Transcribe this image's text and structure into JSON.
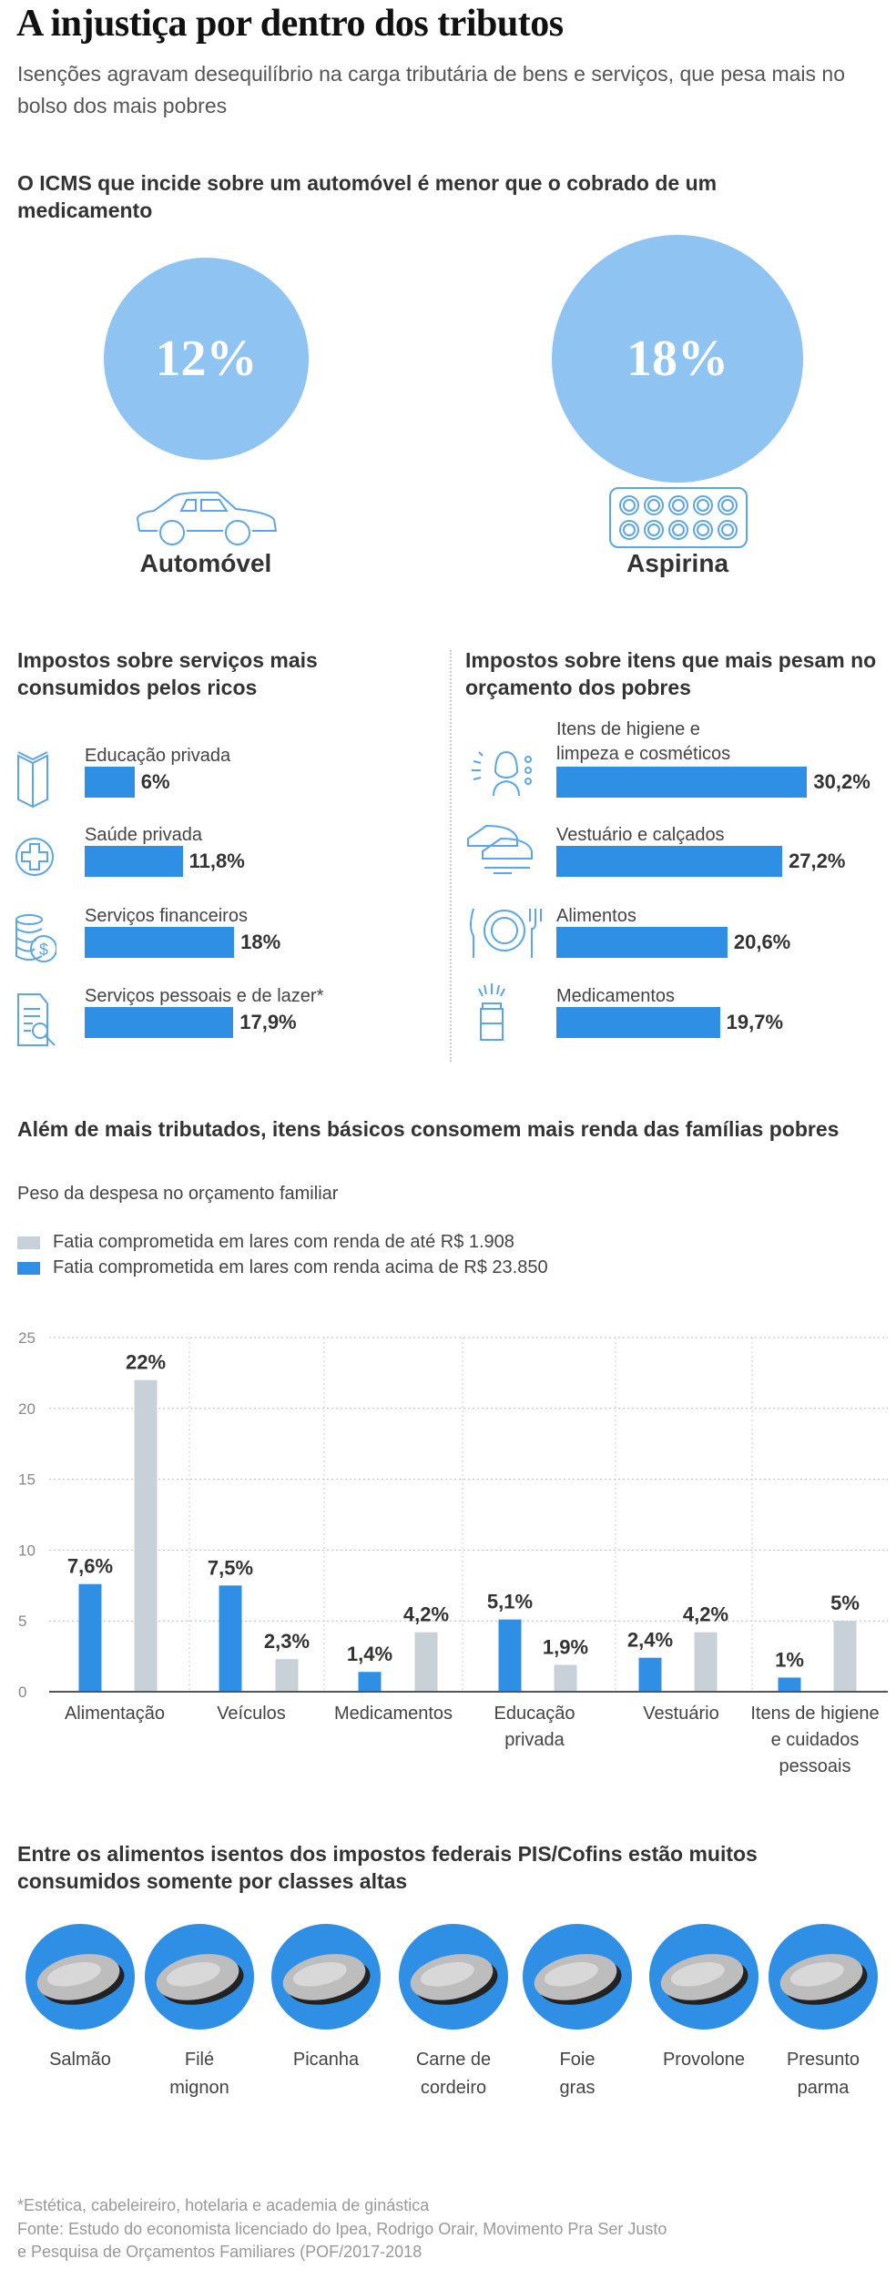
{
  "header": {
    "title": "A injustiça por dentro dos tributos",
    "subtitle": "Isenções agravam desequilíbrio na carga tributária de bens e serviços, que pesa mais no bolso dos mais pobres"
  },
  "icms": {
    "heading": "O ICMS que incide sobre um automóvel é menor que o cobrado de um medicamento",
    "items": [
      {
        "value": "12%",
        "label": "Automóvel",
        "icon": "car-icon"
      },
      {
        "value": "18%",
        "label": "Aspirina",
        "icon": "pill-blister-icon"
      }
    ],
    "circle_color": "#8ec3f2"
  },
  "rich": {
    "heading": "Impostos sobre serviços mais consumidos pelos ricos",
    "items": [
      {
        "label": "Educação privada",
        "value": 6,
        "value_label": "6%",
        "icon": "book-icon"
      },
      {
        "label": "Saúde privada",
        "value": 11.8,
        "value_label": "11,8%",
        "icon": "medical-cross-icon"
      },
      {
        "label": "Serviços financeiros",
        "value": 18,
        "value_label": "18%",
        "icon": "coins-dollar-icon"
      },
      {
        "label": "Serviços pessoais e de lazer*",
        "value": 17.9,
        "value_label": "17,9%",
        "icon": "document-search-icon"
      }
    ]
  },
  "poor": {
    "heading": "Impostos sobre itens que mais pesam no orçamento dos pobres",
    "items": [
      {
        "label": "Itens de higiene e limpeza e cosméticos",
        "line1": "Itens de higiene e",
        "line2": "limpeza e cosméticos",
        "value": 30.2,
        "value_label": "30,2%",
        "icon": "woman-hygiene-icon"
      },
      {
        "label": "Vestuário e calçados",
        "value": 27.2,
        "value_label": "27,2%",
        "icon": "sneakers-icon"
      },
      {
        "label": "Alimentos",
        "value": 20.6,
        "value_label": "20,6%",
        "icon": "plate-fork-knife-icon"
      },
      {
        "label": "Medicamentos",
        "value": 19.7,
        "value_label": "19,7%",
        "icon": "medicine-bottle-icon"
      }
    ]
  },
  "chart_data": {
    "type": "bar",
    "title": "Além de mais tributados, itens básicos consomem mais renda das famílias pobres",
    "subtitle": "Peso da despesa no orçamento familiar",
    "categories": [
      "Alimentação",
      "Veículos",
      "Medicamentos",
      "Educação privada",
      "Vestuário",
      "Itens de higiene e cuidados pessoais"
    ],
    "category_lines": [
      [
        "Alimentação"
      ],
      [
        "Veículos"
      ],
      [
        "Medicamentos"
      ],
      [
        "Educação",
        "privada"
      ],
      [
        "Vestuário"
      ],
      [
        "Itens de higiene",
        "e cuidados",
        "pessoais"
      ]
    ],
    "series": [
      {
        "name": "Fatia comprometida em lares com renda acima de R$ 23.850",
        "color": "#2f8fe5",
        "values": [
          7.6,
          7.5,
          1.4,
          5.1,
          2.4,
          1
        ],
        "labels": [
          "7,6%",
          "7,5%",
          "1,4%",
          "5,1%",
          "2,4%",
          "1%"
        ]
      },
      {
        "name": "Fatia comprometida em lares com renda de até R$ 1.908",
        "color": "#c9d1d8",
        "values": [
          22,
          2.3,
          4.2,
          1.9,
          4.2,
          5
        ],
        "labels": [
          "22%",
          "2,3%",
          "4,2%",
          "1,9%",
          "4,2%",
          "5%"
        ]
      }
    ],
    "legend": [
      "Fatia comprometida em lares com renda de até R$ 1.908",
      "Fatia comprometida em lares com renda acima de R$ 23.850"
    ],
    "legend_placement": "top-left",
    "ylim": [
      0,
      25
    ],
    "yticks": [
      "0",
      "5",
      "10",
      "15",
      "20",
      "25"
    ],
    "grid": true
  },
  "foods": {
    "heading": "Entre os alimentos isentos dos impostos federais PIS/Cofins estão muitos consumidos somente por classes altas",
    "items": [
      {
        "l1": "Salmão",
        "l2": ""
      },
      {
        "l1": "Filé",
        "l2": "mignon"
      },
      {
        "l1": "Picanha",
        "l2": ""
      },
      {
        "l1": "Carne de",
        "l2": "cordeiro"
      },
      {
        "l1": "Foie",
        "l2": "gras"
      },
      {
        "l1": "Provolone",
        "l2": ""
      },
      {
        "l1": "Presunto",
        "l2": "parma"
      }
    ],
    "circle_color": "#2f8fe5"
  },
  "footer": {
    "note": "*Estética, cabeleireiro, hotelaria e academia de ginástica",
    "source1": "Fonte: Estudo do economista licenciado do Ipea, Rodrigo Orair, Movimento Pra Ser Justo",
    "source2": "e Pesquisa de Orçamentos Familiares (POF/2017-2018"
  }
}
